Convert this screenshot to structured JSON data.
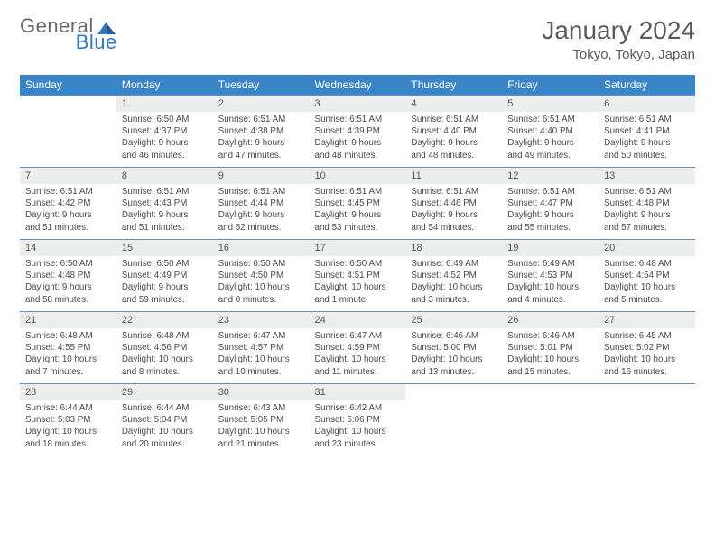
{
  "brand": {
    "part1": "General",
    "part2": "Blue"
  },
  "title": "January 2024",
  "location": "Tokyo, Tokyo, Japan",
  "colors": {
    "header_bg": "#3a85c8",
    "header_text": "#ffffff",
    "daynum_bg": "#eceded",
    "row_border": "#5a93c9",
    "text": "#4a4a4a",
    "title_text": "#5a5a5a"
  },
  "weekdays": [
    "Sunday",
    "Monday",
    "Tuesday",
    "Wednesday",
    "Thursday",
    "Friday",
    "Saturday"
  ],
  "weeks": [
    [
      {
        "n": "",
        "lines": [
          "",
          "",
          "",
          ""
        ]
      },
      {
        "n": "1",
        "lines": [
          "Sunrise: 6:50 AM",
          "Sunset: 4:37 PM",
          "Daylight: 9 hours",
          "and 46 minutes."
        ]
      },
      {
        "n": "2",
        "lines": [
          "Sunrise: 6:51 AM",
          "Sunset: 4:38 PM",
          "Daylight: 9 hours",
          "and 47 minutes."
        ]
      },
      {
        "n": "3",
        "lines": [
          "Sunrise: 6:51 AM",
          "Sunset: 4:39 PM",
          "Daylight: 9 hours",
          "and 48 minutes."
        ]
      },
      {
        "n": "4",
        "lines": [
          "Sunrise: 6:51 AM",
          "Sunset: 4:40 PM",
          "Daylight: 9 hours",
          "and 48 minutes."
        ]
      },
      {
        "n": "5",
        "lines": [
          "Sunrise: 6:51 AM",
          "Sunset: 4:40 PM",
          "Daylight: 9 hours",
          "and 49 minutes."
        ]
      },
      {
        "n": "6",
        "lines": [
          "Sunrise: 6:51 AM",
          "Sunset: 4:41 PM",
          "Daylight: 9 hours",
          "and 50 minutes."
        ]
      }
    ],
    [
      {
        "n": "7",
        "lines": [
          "Sunrise: 6:51 AM",
          "Sunset: 4:42 PM",
          "Daylight: 9 hours",
          "and 51 minutes."
        ]
      },
      {
        "n": "8",
        "lines": [
          "Sunrise: 6:51 AM",
          "Sunset: 4:43 PM",
          "Daylight: 9 hours",
          "and 51 minutes."
        ]
      },
      {
        "n": "9",
        "lines": [
          "Sunrise: 6:51 AM",
          "Sunset: 4:44 PM",
          "Daylight: 9 hours",
          "and 52 minutes."
        ]
      },
      {
        "n": "10",
        "lines": [
          "Sunrise: 6:51 AM",
          "Sunset: 4:45 PM",
          "Daylight: 9 hours",
          "and 53 minutes."
        ]
      },
      {
        "n": "11",
        "lines": [
          "Sunrise: 6:51 AM",
          "Sunset: 4:46 PM",
          "Daylight: 9 hours",
          "and 54 minutes."
        ]
      },
      {
        "n": "12",
        "lines": [
          "Sunrise: 6:51 AM",
          "Sunset: 4:47 PM",
          "Daylight: 9 hours",
          "and 55 minutes."
        ]
      },
      {
        "n": "13",
        "lines": [
          "Sunrise: 6:51 AM",
          "Sunset: 4:48 PM",
          "Daylight: 9 hours",
          "and 57 minutes."
        ]
      }
    ],
    [
      {
        "n": "14",
        "lines": [
          "Sunrise: 6:50 AM",
          "Sunset: 4:48 PM",
          "Daylight: 9 hours",
          "and 58 minutes."
        ]
      },
      {
        "n": "15",
        "lines": [
          "Sunrise: 6:50 AM",
          "Sunset: 4:49 PM",
          "Daylight: 9 hours",
          "and 59 minutes."
        ]
      },
      {
        "n": "16",
        "lines": [
          "Sunrise: 6:50 AM",
          "Sunset: 4:50 PM",
          "Daylight: 10 hours",
          "and 0 minutes."
        ]
      },
      {
        "n": "17",
        "lines": [
          "Sunrise: 6:50 AM",
          "Sunset: 4:51 PM",
          "Daylight: 10 hours",
          "and 1 minute."
        ]
      },
      {
        "n": "18",
        "lines": [
          "Sunrise: 6:49 AM",
          "Sunset: 4:52 PM",
          "Daylight: 10 hours",
          "and 3 minutes."
        ]
      },
      {
        "n": "19",
        "lines": [
          "Sunrise: 6:49 AM",
          "Sunset: 4:53 PM",
          "Daylight: 10 hours",
          "and 4 minutes."
        ]
      },
      {
        "n": "20",
        "lines": [
          "Sunrise: 6:48 AM",
          "Sunset: 4:54 PM",
          "Daylight: 10 hours",
          "and 5 minutes."
        ]
      }
    ],
    [
      {
        "n": "21",
        "lines": [
          "Sunrise: 6:48 AM",
          "Sunset: 4:55 PM",
          "Daylight: 10 hours",
          "and 7 minutes."
        ]
      },
      {
        "n": "22",
        "lines": [
          "Sunrise: 6:48 AM",
          "Sunset: 4:56 PM",
          "Daylight: 10 hours",
          "and 8 minutes."
        ]
      },
      {
        "n": "23",
        "lines": [
          "Sunrise: 6:47 AM",
          "Sunset: 4:57 PM",
          "Daylight: 10 hours",
          "and 10 minutes."
        ]
      },
      {
        "n": "24",
        "lines": [
          "Sunrise: 6:47 AM",
          "Sunset: 4:59 PM",
          "Daylight: 10 hours",
          "and 11 minutes."
        ]
      },
      {
        "n": "25",
        "lines": [
          "Sunrise: 6:46 AM",
          "Sunset: 5:00 PM",
          "Daylight: 10 hours",
          "and 13 minutes."
        ]
      },
      {
        "n": "26",
        "lines": [
          "Sunrise: 6:46 AM",
          "Sunset: 5:01 PM",
          "Daylight: 10 hours",
          "and 15 minutes."
        ]
      },
      {
        "n": "27",
        "lines": [
          "Sunrise: 6:45 AM",
          "Sunset: 5:02 PM",
          "Daylight: 10 hours",
          "and 16 minutes."
        ]
      }
    ],
    [
      {
        "n": "28",
        "lines": [
          "Sunrise: 6:44 AM",
          "Sunset: 5:03 PM",
          "Daylight: 10 hours",
          "and 18 minutes."
        ]
      },
      {
        "n": "29",
        "lines": [
          "Sunrise: 6:44 AM",
          "Sunset: 5:04 PM",
          "Daylight: 10 hours",
          "and 20 minutes."
        ]
      },
      {
        "n": "30",
        "lines": [
          "Sunrise: 6:43 AM",
          "Sunset: 5:05 PM",
          "Daylight: 10 hours",
          "and 21 minutes."
        ]
      },
      {
        "n": "31",
        "lines": [
          "Sunrise: 6:42 AM",
          "Sunset: 5:06 PM",
          "Daylight: 10 hours",
          "and 23 minutes."
        ]
      },
      {
        "n": "",
        "lines": [
          "",
          "",
          "",
          ""
        ]
      },
      {
        "n": "",
        "lines": [
          "",
          "",
          "",
          ""
        ]
      },
      {
        "n": "",
        "lines": [
          "",
          "",
          "",
          ""
        ]
      }
    ]
  ]
}
